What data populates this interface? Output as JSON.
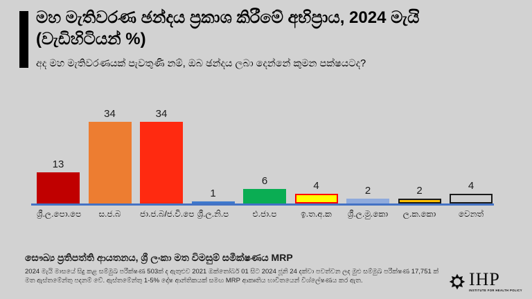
{
  "header": {
    "title_line1": "මහ මැතිවරණ ඡන්දය ප්‍රකාශ කිරීමේ අභිප්‍රාය, 2024 මැයි",
    "title_line2": "(වැඩිහිටියන් %)",
    "subtitle": "අද මහ මැතිවරණයක් පැවතුණි නම්, ඔබ ඡන්දය ලබා දෙන්නේ කුමන පක්ෂයටද?"
  },
  "chart_data": {
    "type": "bar",
    "title": "මහ මැතිවරණ ඡන්දය ප්‍රකාශ කිරීමේ අභිප්‍රාය, 2024 මැයි (වැඩිහිටියන් %)",
    "question": "අද මහ මැතිවරණයක් පැවතුණි නම්, ඔබ ඡන්දය ලබා දෙන්නේ කුමන පක්ෂයටද?",
    "categories": [
      "ශ්‍රී.ල.පො.පෙ",
      "ස.ජ.බ",
      "ජා.ජ.බ/ජ.වි.පෙ",
      "ශ්‍රී.ල.නි.ප",
      "එ.ජා.ප",
      "ඉ.ත.අ.ක",
      "ශ්‍රී.ල.මු.කො",
      "ල.ක.කො",
      "වෙනත්"
    ],
    "party_keys": [
      "slpp",
      "sjb",
      "npp-jvp",
      "slfp",
      "unp",
      "itak",
      "slmc",
      "cwc",
      "other"
    ],
    "values": [
      13,
      34,
      34,
      1,
      6,
      4,
      2,
      2,
      4
    ],
    "bar_colors": [
      "#c00000",
      "#ed7d31",
      "#ff2a10",
      "#3e79cd",
      "#0aad53",
      "#ffff00",
      "#8faadc",
      "#ffc000",
      "#cfcfcf"
    ],
    "bar_borders": [
      null,
      null,
      null,
      null,
      null,
      "#ff0000",
      null,
      "#1a1a1a",
      "#1a1a1a"
    ],
    "value_labels_shown": true,
    "xlabel": "",
    "ylabel": "",
    "ylim": [
      0,
      34
    ],
    "grid": false,
    "legend": false,
    "axis_color": "#4472c4"
  },
  "footer": {
    "source_bold": "සෞඛ්‍ය ප්‍රතිපත්ති ආයතනය, ශ්‍රී ලංකා මත විමසුම් සමීක්ෂණය MRP",
    "note_line1": "2024 මැයි මාසයේ සිදු කළ සම්මුඛ පරීක්ෂණ 503ක් ද ඇතුළුව 2021 ඔක්තෝබර් 01 සිට 2024 ජූනි 24 දක්වා පවත්වන ලද මුළු සම්මුඛ පරීක්ෂණ 17,751 ක්",
    "note_line2": "මත ඇස්තමේන්තු පදනම් වේ. ඇස්තමේන්තු 1-5% දෝෂ ආන්තිකයක් සමඟ MRP ආකෘතිය භාවිතයෙන් විශ්ලේෂණය කර ඇත."
  },
  "logo": {
    "name": "IHP",
    "caption": "INSTITUTE FOR HEALTH POLICY"
  }
}
